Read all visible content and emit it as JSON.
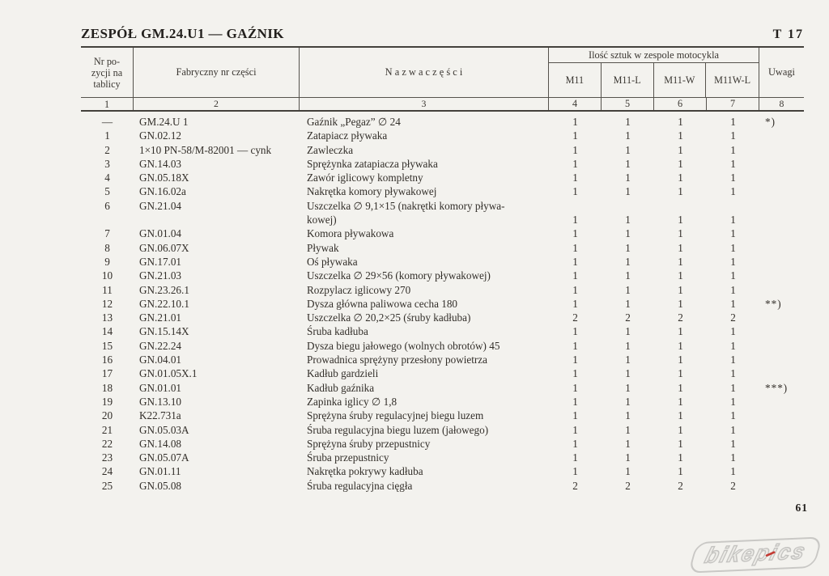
{
  "page": {
    "title": "ZESPÓŁ GM.24.U1 — GAŹNIK",
    "page_ref": "T 17",
    "page_number": "61",
    "watermark": "bikepics",
    "watermark_colors": {
      "outline": "#c4c3c0",
      "accent": "#c43a33"
    }
  },
  "table": {
    "headers": {
      "nr_pozycji": "Nr po-\nzycji na\ntablicy",
      "fabryczny": "Fabryczny nr części",
      "nazwa": "N a z w a   c z ę ś c i",
      "ilosc_group": "Ilość sztuk w zespole motocykla",
      "models": [
        "M11",
        "M11-L",
        "M11-W",
        "M11W-L"
      ],
      "uwagi": "Uwagi",
      "column_numbers": [
        "1",
        "2",
        "3",
        "4",
        "5",
        "6",
        "7",
        "8"
      ]
    },
    "rows": [
      {
        "pos": "—",
        "part_no": "GM.24.U 1",
        "name": "Gaźnik „Pegaz” ∅ 24",
        "qty": [
          "1",
          "1",
          "1",
          "1"
        ],
        "remark": "*)"
      },
      {
        "pos": "1",
        "part_no": "GN.02.12",
        "name": "Zatapiacz pływaka",
        "qty": [
          "1",
          "1",
          "1",
          "1"
        ],
        "remark": ""
      },
      {
        "pos": "2",
        "part_no": "1×10 PN-58/M-82001 — cynk",
        "name": "Zawleczka",
        "qty": [
          "1",
          "1",
          "1",
          "1"
        ],
        "remark": ""
      },
      {
        "pos": "3",
        "part_no": "GN.14.03",
        "name": "Sprężynka zatapiacza pływaka",
        "qty": [
          "1",
          "1",
          "1",
          "1"
        ],
        "remark": ""
      },
      {
        "pos": "4",
        "part_no": "GN.05.18X",
        "name": "Zawór iglicowy kompletny",
        "qty": [
          "1",
          "1",
          "1",
          "1"
        ],
        "remark": ""
      },
      {
        "pos": "5",
        "part_no": "GN.16.02a",
        "name": "Nakrętka komory pływakowej",
        "qty": [
          "1",
          "1",
          "1",
          "1"
        ],
        "remark": ""
      },
      {
        "pos": "6",
        "part_no": "GN.21.04",
        "name": "Uszczelka ∅  9,1×15 (nakrętki komory pływa-\nkowej)",
        "qty": [
          "1",
          "1",
          "1",
          "1"
        ],
        "remark": ""
      },
      {
        "pos": "7",
        "part_no": "GN.01.04",
        "name": "Komora pływakowa",
        "qty": [
          "1",
          "1",
          "1",
          "1"
        ],
        "remark": ""
      },
      {
        "pos": "8",
        "part_no": "GN.06.07X",
        "name": "Pływak",
        "qty": [
          "1",
          "1",
          "1",
          "1"
        ],
        "remark": ""
      },
      {
        "pos": "9",
        "part_no": "GN.17.01",
        "name": "Oś pływaka",
        "qty": [
          "1",
          "1",
          "1",
          "1"
        ],
        "remark": ""
      },
      {
        "pos": "10",
        "part_no": "GN.21.03",
        "name": "Uszczelka ∅ 29×56 (komory pływakowej)",
        "qty": [
          "1",
          "1",
          "1",
          "1"
        ],
        "remark": ""
      },
      {
        "pos": "11",
        "part_no": "GN.23.26.1",
        "name": "Rozpylacz iglicowy 270",
        "qty": [
          "1",
          "1",
          "1",
          "1"
        ],
        "remark": ""
      },
      {
        "pos": "12",
        "part_no": "GN.22.10.1",
        "name": "Dysza główna paliwowa cecha 180",
        "qty": [
          "1",
          "1",
          "1",
          "1"
        ],
        "remark": "**)"
      },
      {
        "pos": "13",
        "part_no": "GN.21.01",
        "name": "Uszczelka ∅ 20,2×25 (śruby kadłuba)",
        "qty": [
          "2",
          "2",
          "2",
          "2"
        ],
        "remark": ""
      },
      {
        "pos": "14",
        "part_no": "GN.15.14X",
        "name": "Śruba kadłuba",
        "qty": [
          "1",
          "1",
          "1",
          "1"
        ],
        "remark": ""
      },
      {
        "pos": "15",
        "part_no": "GN.22.24",
        "name": "Dysza biegu jałowego (wolnych obrotów) 45",
        "qty": [
          "1",
          "1",
          "1",
          "1"
        ],
        "remark": ""
      },
      {
        "pos": "16",
        "part_no": "GN.04.01",
        "name": "Prowadnica sprężyny przesłony powietrza",
        "qty": [
          "1",
          "1",
          "1",
          "1"
        ],
        "remark": ""
      },
      {
        "pos": "17",
        "part_no": "GN.01.05X.1",
        "name": "Kadłub gardzieli",
        "qty": [
          "1",
          "1",
          "1",
          "1"
        ],
        "remark": ""
      },
      {
        "pos": "18",
        "part_no": "GN.01.01",
        "name": "Kadłub gaźnika",
        "qty": [
          "1",
          "1",
          "1",
          "1"
        ],
        "remark": "***)"
      },
      {
        "pos": "19",
        "part_no": "GN.13.10",
        "name": "Zapinka iglicy ∅ 1,8",
        "qty": [
          "1",
          "1",
          "1",
          "1"
        ],
        "remark": ""
      },
      {
        "pos": "20",
        "part_no": "K22.731a",
        "name": "Sprężyna śruby regulacyjnej biegu luzem",
        "qty": [
          "1",
          "1",
          "1",
          "1"
        ],
        "remark": ""
      },
      {
        "pos": "21",
        "part_no": "GN.05.03A",
        "name": "Śruba regulacyjna biegu luzem (jałowego)",
        "qty": [
          "1",
          "1",
          "1",
          "1"
        ],
        "remark": ""
      },
      {
        "pos": "22",
        "part_no": "GN.14.08",
        "name": "Sprężyna śruby przepustnicy",
        "qty": [
          "1",
          "1",
          "1",
          "1"
        ],
        "remark": ""
      },
      {
        "pos": "23",
        "part_no": "GN.05.07A",
        "name": "Śruba przepustnicy",
        "qty": [
          "1",
          "1",
          "1",
          "1"
        ],
        "remark": ""
      },
      {
        "pos": "24",
        "part_no": "GN.01.11",
        "name": "Nakrętka pokrywy kadłuba",
        "qty": [
          "1",
          "1",
          "1",
          "1"
        ],
        "remark": ""
      },
      {
        "pos": "25",
        "part_no": "GN.05.08",
        "name": "Śruba regulacyjna cięgła",
        "qty": [
          "2",
          "2",
          "2",
          "2"
        ],
        "remark": ""
      }
    ]
  }
}
